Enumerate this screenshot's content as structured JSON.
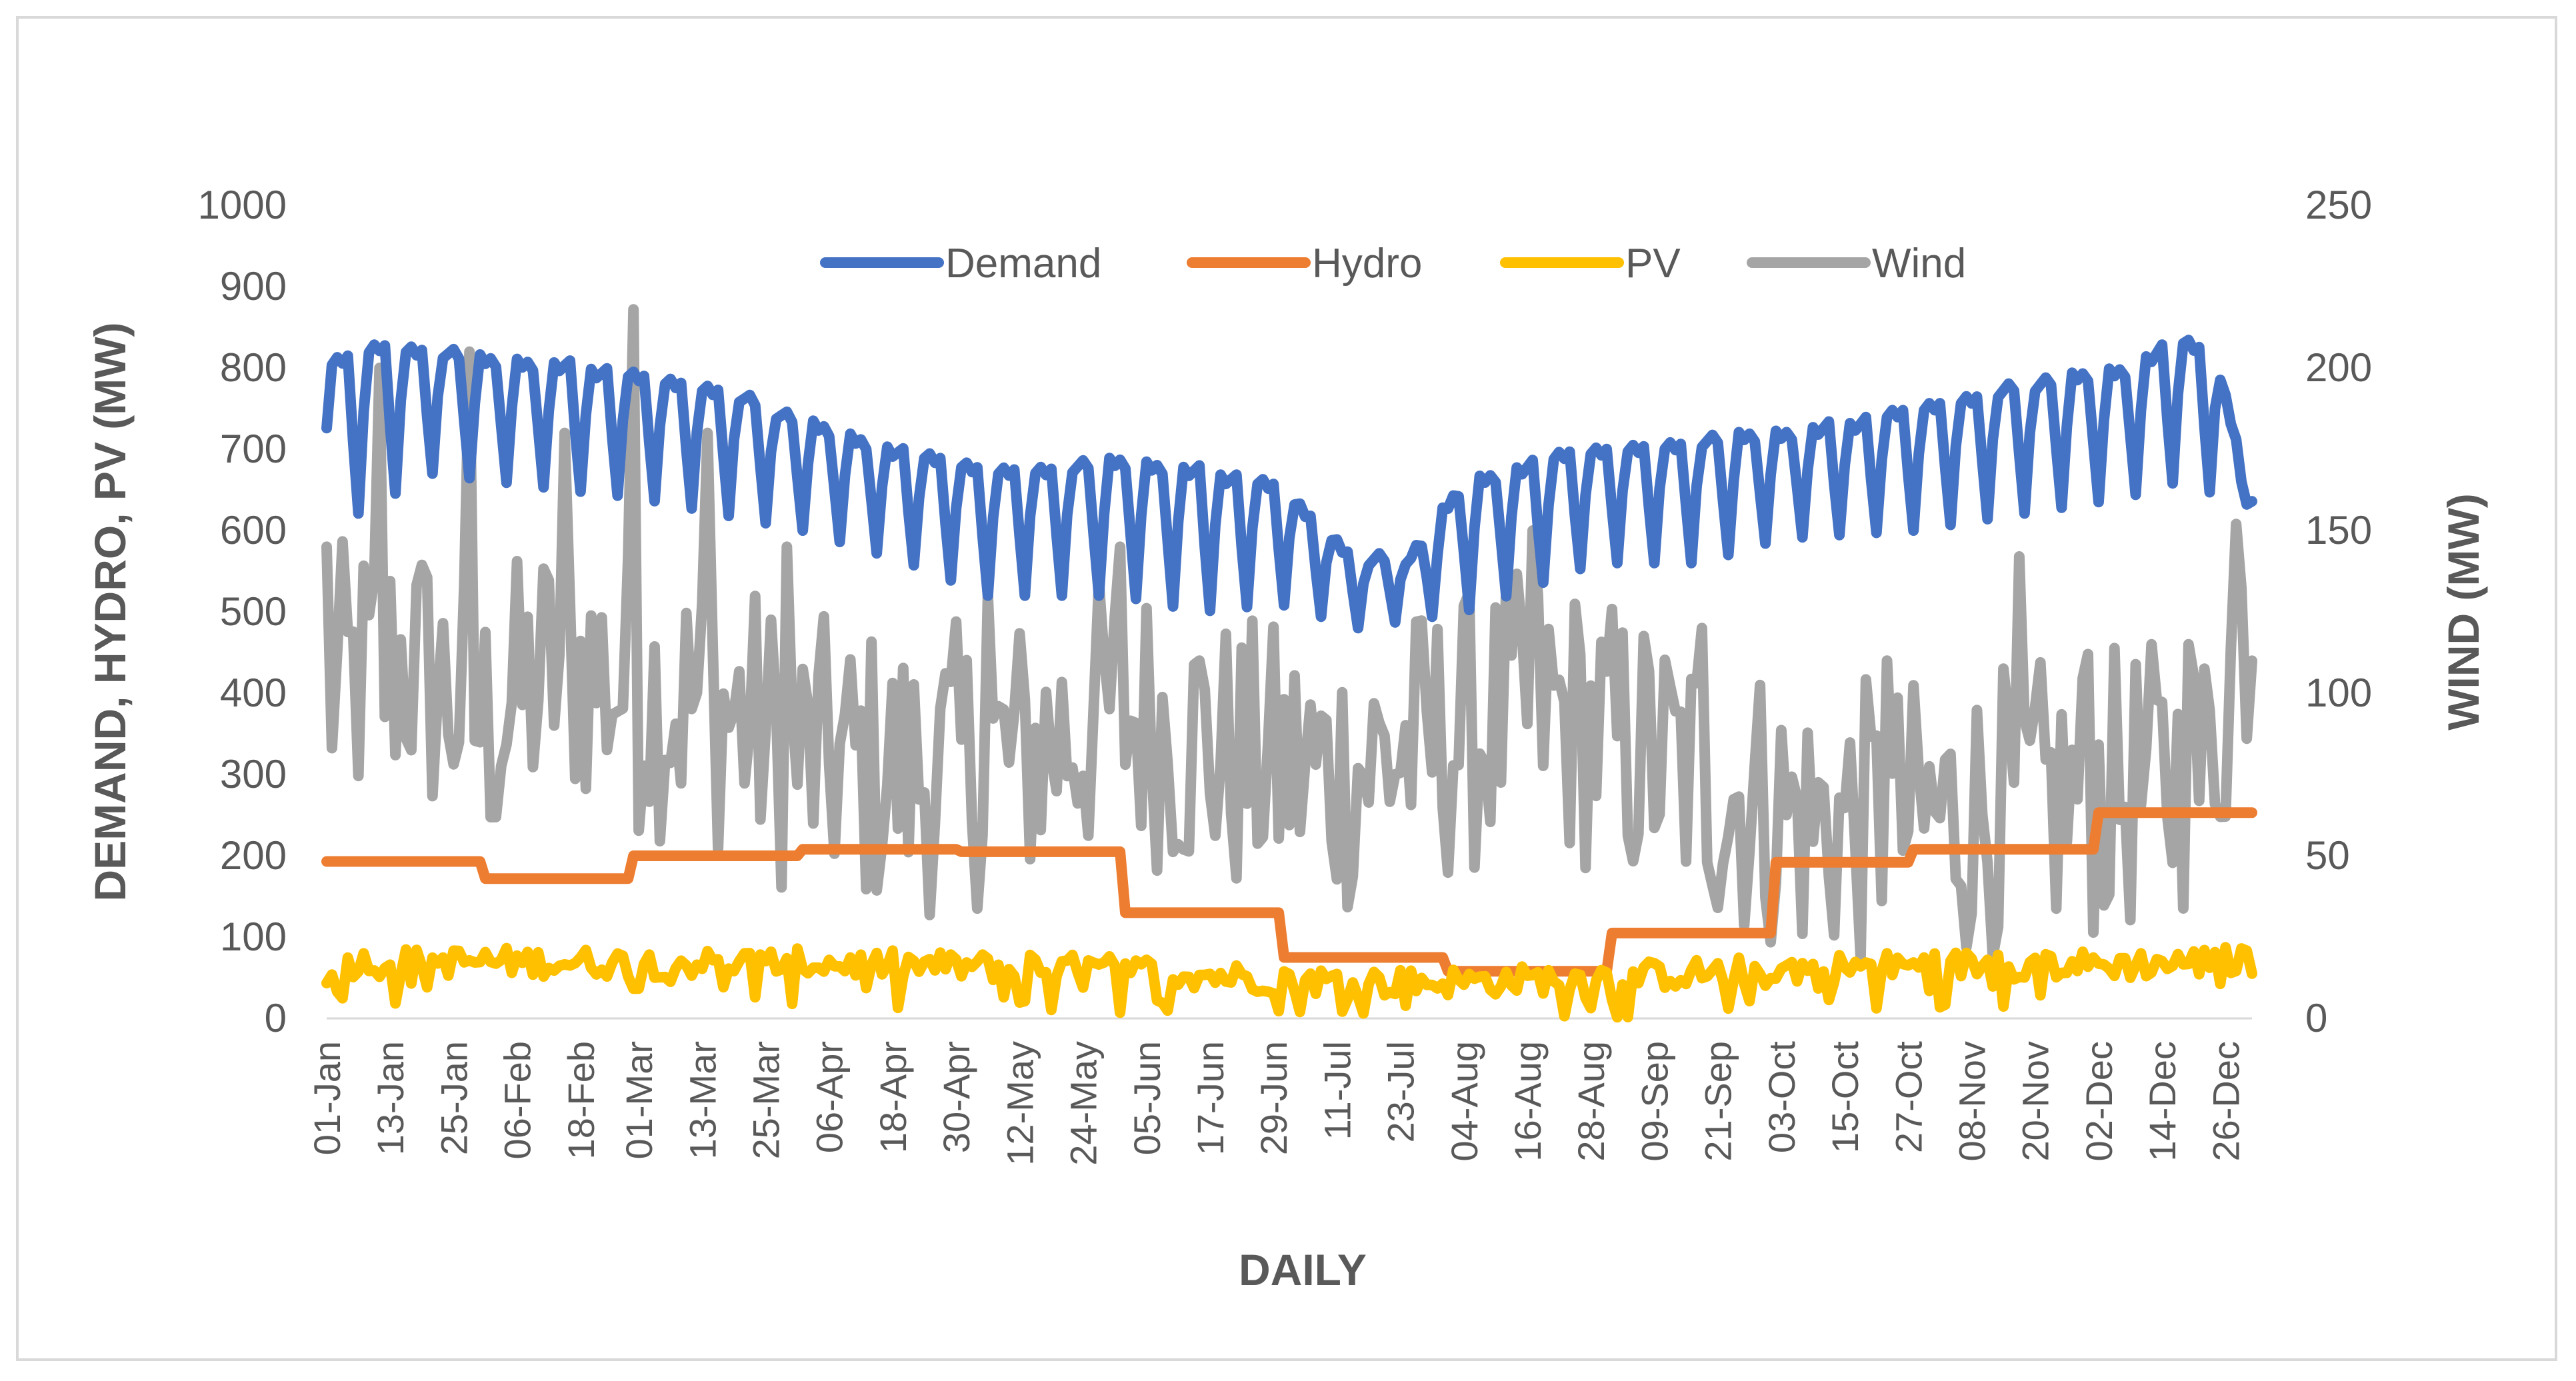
{
  "chart_data": {
    "type": "line",
    "title": "",
    "xlabel": "DAILY",
    "ylabel": "DEMAND, HYDRO, PV (MW)",
    "y2label": "WIND (MW)",
    "ylim": [
      0,
      1000
    ],
    "y2lim": [
      0,
      250
    ],
    "yticks": [
      "0",
      "100",
      "200",
      "300",
      "400",
      "500",
      "600",
      "700",
      "800",
      "900",
      "1000"
    ],
    "y2ticks": [
      "0",
      "50",
      "100",
      "150",
      "200",
      "250"
    ],
    "legend_position": "top-center",
    "days": 365,
    "x_tick_labels": [
      "01-Jan",
      "13-Jan",
      "25-Jan",
      "06-Feb",
      "18-Feb",
      "01-Mar",
      "13-Mar",
      "25-Mar",
      "06-Apr",
      "18-Apr",
      "30-Apr",
      "12-May",
      "24-May",
      "05-Jun",
      "17-Jun",
      "29-Jun",
      "11-Jul",
      "23-Jul",
      "04-Aug",
      "16-Aug",
      "28-Aug",
      "09-Sep",
      "21-Sep",
      "03-Oct",
      "15-Oct",
      "27-Oct",
      "08-Nov",
      "20-Nov",
      "02-Dec",
      "14-Dec",
      "26-Dec"
    ],
    "x_tick_days": [
      0,
      12,
      24,
      36,
      48,
      59,
      71,
      83,
      95,
      107,
      119,
      131,
      143,
      155,
      167,
      179,
      191,
      203,
      215,
      227,
      239,
      251,
      263,
      275,
      287,
      299,
      311,
      323,
      335,
      347,
      359
    ],
    "colors": {
      "Demand": "#4472c4",
      "Hydro": "#ed7d31",
      "PV": "#ffc000",
      "Wind": "#a5a5a5"
    },
    "series": [
      {
        "name": "Demand",
        "axis": "left",
        "pattern": "weekly",
        "weekday_anchors": [
          [
            0,
            810
          ],
          [
            10,
            835
          ],
          [
            20,
            830
          ],
          [
            30,
            815
          ],
          [
            45,
            810
          ],
          [
            59,
            795
          ],
          [
            75,
            780
          ],
          [
            90,
            740
          ],
          [
            110,
            700
          ],
          [
            125,
            680
          ],
          [
            150,
            690
          ],
          [
            165,
            680
          ],
          [
            180,
            660
          ],
          [
            195,
            570
          ],
          [
            205,
            575
          ],
          [
            215,
            665
          ],
          [
            235,
            700
          ],
          [
            255,
            715
          ],
          [
            275,
            725
          ],
          [
            290,
            740
          ],
          [
            310,
            770
          ],
          [
            325,
            790
          ],
          [
            340,
            805
          ],
          [
            350,
            840
          ],
          [
            357,
            820
          ],
          [
            364,
            640
          ]
        ],
        "weekend_anchors": [
          [
            0,
            600
          ],
          [
            20,
            670
          ],
          [
            45,
            650
          ],
          [
            59,
            640
          ],
          [
            90,
            600
          ],
          [
            110,
            560
          ],
          [
            125,
            520
          ],
          [
            150,
            520
          ],
          [
            165,
            500
          ],
          [
            180,
            510
          ],
          [
            195,
            480
          ],
          [
            205,
            490
          ],
          [
            215,
            500
          ],
          [
            240,
            560
          ],
          [
            260,
            560
          ],
          [
            275,
            590
          ],
          [
            300,
            600
          ],
          [
            320,
            620
          ],
          [
            340,
            640
          ],
          [
            350,
            660
          ],
          [
            364,
            630
          ]
        ]
      },
      {
        "name": "Hydro",
        "axis": "left",
        "pattern": "steps",
        "steps": [
          [
            0,
            193
          ],
          [
            30,
            172
          ],
          [
            58,
            200
          ],
          [
            90,
            208
          ],
          [
            120,
            205
          ],
          [
            151,
            130
          ],
          [
            181,
            75
          ],
          [
            212,
            58
          ],
          [
            243,
            105
          ],
          [
            274,
            192
          ],
          [
            300,
            208
          ],
          [
            335,
            253
          ],
          [
            364,
            253
          ]
        ]
      },
      {
        "name": "PV",
        "axis": "left",
        "pattern": "noisy",
        "base_anchors": [
          [
            0,
            68
          ],
          [
            30,
            70
          ],
          [
            60,
            68
          ],
          [
            90,
            68
          ],
          [
            120,
            64
          ],
          [
            150,
            60
          ],
          [
            180,
            48
          ],
          [
            200,
            44
          ],
          [
            220,
            46
          ],
          [
            240,
            50
          ],
          [
            260,
            56
          ],
          [
            280,
            62
          ],
          [
            310,
            66
          ],
          [
            340,
            66
          ],
          [
            364,
            72
          ]
        ],
        "noise_amplitude": 18
      },
      {
        "name": "Wind",
        "axis": "right",
        "pattern": "noisy",
        "base_anchors": [
          [
            0,
            100
          ],
          [
            15,
            110
          ],
          [
            30,
            90
          ],
          [
            45,
            110
          ],
          [
            60,
            100
          ],
          [
            75,
            95
          ],
          [
            90,
            80
          ],
          [
            110,
            75
          ],
          [
            130,
            80
          ],
          [
            150,
            95
          ],
          [
            170,
            80
          ],
          [
            190,
            75
          ],
          [
            210,
            85
          ],
          [
            230,
            95
          ],
          [
            250,
            80
          ],
          [
            265,
            70
          ],
          [
            280,
            60
          ],
          [
            300,
            60
          ],
          [
            320,
            65
          ],
          [
            340,
            70
          ],
          [
            355,
            75
          ],
          [
            364,
            130
          ]
        ],
        "noise_amplitude": 45,
        "peaks": [
          [
            0,
            145
          ],
          [
            10,
            200
          ],
          [
            27,
            205
          ],
          [
            45,
            180
          ],
          [
            58,
            218
          ],
          [
            72,
            180
          ],
          [
            87,
            145
          ],
          [
            125,
            130
          ],
          [
            150,
            145
          ],
          [
            165,
            110
          ],
          [
            228,
            150
          ],
          [
            260,
            120
          ],
          [
            295,
            110
          ],
          [
            320,
            142
          ],
          [
            333,
            112
          ],
          [
            352,
            115
          ],
          [
            361,
            152
          ]
        ]
      }
    ]
  }
}
